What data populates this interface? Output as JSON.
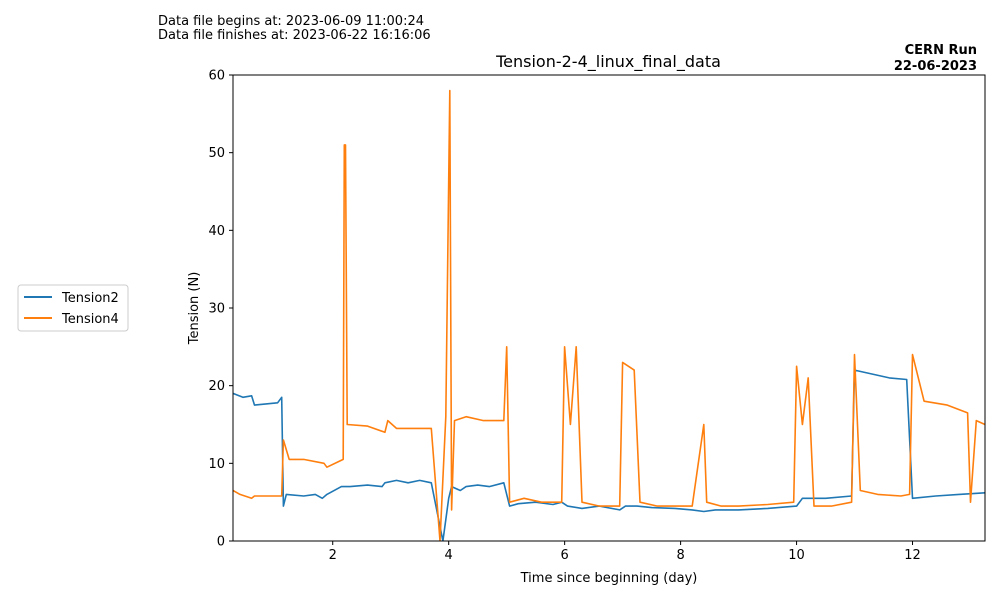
{
  "figure": {
    "info_line1": "Data file begins at: 2023-06-09 11:00:24",
    "info_line2": "Data file finishes at: 2023-06-22 16:16:06",
    "run_label": "CERN Run",
    "run_date": "22-06-2023"
  },
  "chart_data": {
    "type": "line",
    "title": "Tension-2-4_linux_final_data",
    "xlabel": "Time since beginning (day)",
    "ylabel": "Tension (N)",
    "xlim": [
      0.28,
      13.25
    ],
    "ylim": [
      0,
      60
    ],
    "xticks": [
      2,
      4,
      6,
      8,
      10,
      12
    ],
    "yticks": [
      0,
      10,
      20,
      30,
      40,
      50,
      60
    ],
    "grid": false,
    "legend_position": "left, outside plot",
    "series": [
      {
        "name": "Tension2",
        "color": "#1f77b4",
        "points": [
          [
            0.28,
            19.0
          ],
          [
            0.45,
            18.5
          ],
          [
            0.6,
            18.7
          ],
          [
            0.65,
            17.5
          ],
          [
            1.05,
            17.8
          ],
          [
            1.12,
            18.5
          ],
          [
            1.15,
            4.5
          ],
          [
            1.2,
            6.0
          ],
          [
            1.5,
            5.8
          ],
          [
            1.7,
            6.0
          ],
          [
            1.82,
            5.5
          ],
          [
            1.9,
            6.0
          ],
          [
            2.15,
            7.0
          ],
          [
            2.3,
            7.0
          ],
          [
            2.6,
            7.2
          ],
          [
            2.85,
            7.0
          ],
          [
            2.9,
            7.5
          ],
          [
            3.1,
            7.8
          ],
          [
            3.3,
            7.5
          ],
          [
            3.5,
            7.8
          ],
          [
            3.7,
            7.5
          ],
          [
            3.9,
            0.0
          ],
          [
            4.0,
            5.5
          ],
          [
            4.05,
            7.0
          ],
          [
            4.2,
            6.5
          ],
          [
            4.3,
            7.0
          ],
          [
            4.5,
            7.2
          ],
          [
            4.7,
            7.0
          ],
          [
            4.95,
            7.5
          ],
          [
            5.05,
            4.5
          ],
          [
            5.2,
            4.8
          ],
          [
            5.5,
            5.0
          ],
          [
            5.8,
            4.7
          ],
          [
            5.95,
            5.0
          ],
          [
            6.05,
            4.5
          ],
          [
            6.3,
            4.2
          ],
          [
            6.6,
            4.5
          ],
          [
            6.95,
            4.0
          ],
          [
            7.05,
            4.5
          ],
          [
            7.25,
            4.5
          ],
          [
            7.5,
            4.3
          ],
          [
            7.9,
            4.2
          ],
          [
            8.2,
            4.0
          ],
          [
            8.4,
            3.8
          ],
          [
            8.6,
            4.0
          ],
          [
            9.0,
            4.0
          ],
          [
            9.5,
            4.2
          ],
          [
            10.0,
            4.5
          ],
          [
            10.1,
            5.5
          ],
          [
            10.5,
            5.5
          ],
          [
            10.95,
            5.8
          ],
          [
            11.0,
            22.0
          ],
          [
            11.3,
            21.5
          ],
          [
            11.6,
            21.0
          ],
          [
            11.9,
            20.8
          ],
          [
            12.0,
            5.5
          ],
          [
            12.4,
            5.8
          ],
          [
            12.8,
            6.0
          ],
          [
            13.25,
            6.2
          ]
        ]
      },
      {
        "name": "Tension4",
        "color": "#ff7f0e",
        "points": [
          [
            0.28,
            6.5
          ],
          [
            0.4,
            6.0
          ],
          [
            0.6,
            5.5
          ],
          [
            0.65,
            5.8
          ],
          [
            1.05,
            5.8
          ],
          [
            1.12,
            5.8
          ],
          [
            1.15,
            13.0
          ],
          [
            1.25,
            10.5
          ],
          [
            1.5,
            10.5
          ],
          [
            1.85,
            10.0
          ],
          [
            1.9,
            9.5
          ],
          [
            2.18,
            10.5
          ],
          [
            2.2,
            51.0
          ],
          [
            2.22,
            51.0
          ],
          [
            2.25,
            15.0
          ],
          [
            2.6,
            14.8
          ],
          [
            2.9,
            14.0
          ],
          [
            2.95,
            15.5
          ],
          [
            3.1,
            14.5
          ],
          [
            3.35,
            14.5
          ],
          [
            3.7,
            14.5
          ],
          [
            3.85,
            0.0
          ],
          [
            3.95,
            16.0
          ],
          [
            4.02,
            58.0
          ],
          [
            4.05,
            4.0
          ],
          [
            4.1,
            15.5
          ],
          [
            4.3,
            16.0
          ],
          [
            4.6,
            15.5
          ],
          [
            4.95,
            15.5
          ],
          [
            5.0,
            25.0
          ],
          [
            5.05,
            5.0
          ],
          [
            5.3,
            5.5
          ],
          [
            5.6,
            5.0
          ],
          [
            5.95,
            5.0
          ],
          [
            6.0,
            25.0
          ],
          [
            6.1,
            15.0
          ],
          [
            6.2,
            25.0
          ],
          [
            6.3,
            5.0
          ],
          [
            6.6,
            4.5
          ],
          [
            6.95,
            4.5
          ],
          [
            7.0,
            23.0
          ],
          [
            7.2,
            22.0
          ],
          [
            7.3,
            5.0
          ],
          [
            7.6,
            4.5
          ],
          [
            7.95,
            4.5
          ],
          [
            8.2,
            4.5
          ],
          [
            8.4,
            15.0
          ],
          [
            8.45,
            5.0
          ],
          [
            8.7,
            4.5
          ],
          [
            9.0,
            4.5
          ],
          [
            9.5,
            4.7
          ],
          [
            9.95,
            5.0
          ],
          [
            10.0,
            22.5
          ],
          [
            10.1,
            15.0
          ],
          [
            10.2,
            21.0
          ],
          [
            10.3,
            4.5
          ],
          [
            10.6,
            4.5
          ],
          [
            10.95,
            5.0
          ],
          [
            11.0,
            24.0
          ],
          [
            11.1,
            6.5
          ],
          [
            11.4,
            6.0
          ],
          [
            11.8,
            5.8
          ],
          [
            11.95,
            6.0
          ],
          [
            12.0,
            24.0
          ],
          [
            12.2,
            18.0
          ],
          [
            12.6,
            17.5
          ],
          [
            12.95,
            16.5
          ],
          [
            13.0,
            5.0
          ],
          [
            13.1,
            15.5
          ],
          [
            13.25,
            15.0
          ]
        ]
      }
    ]
  }
}
